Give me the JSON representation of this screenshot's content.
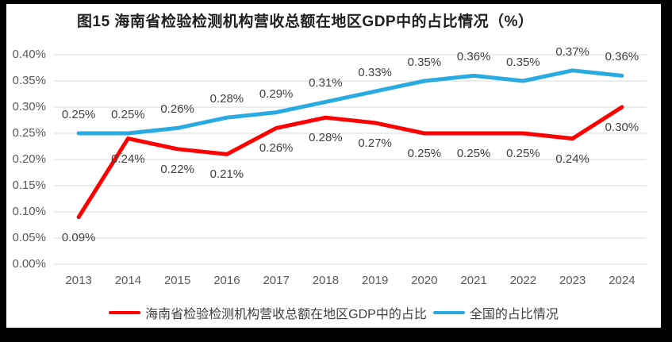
{
  "colors": {
    "hainan": "#fe0000",
    "national": "#29abe2",
    "gridline": "#d9d9d9",
    "axis_text": "#595959",
    "label_text": "#404040",
    "frame": "#000000",
    "background": "#ffffff"
  },
  "chart_data": {
    "type": "line",
    "title": "图15 海南省检验检测机构营收总额在地区GDP中的占比情况（%）",
    "xlabel": "",
    "ylabel": "",
    "categories": [
      "2013",
      "2014",
      "2015",
      "2016",
      "2017",
      "2018",
      "2019",
      "2020",
      "2021",
      "2022",
      "2023",
      "2024"
    ],
    "series": [
      {
        "name": "海南省检验检测机构营收总额在地区GDP中的占比",
        "color_key": "hainan",
        "values": [
          0.09,
          0.24,
          0.22,
          0.21,
          0.26,
          0.28,
          0.27,
          0.25,
          0.25,
          0.25,
          0.24,
          0.3
        ],
        "labels": [
          "0.09%",
          "0.24%",
          "0.22%",
          "0.21%",
          "0.26%",
          "0.28%",
          "0.27%",
          "0.25%",
          "0.25%",
          "0.25%",
          "0.24%",
          "0.30%"
        ],
        "label_position": "below"
      },
      {
        "name": "全国的占比情况",
        "color_key": "national",
        "values": [
          0.25,
          0.25,
          0.26,
          0.28,
          0.29,
          0.31,
          0.33,
          0.35,
          0.36,
          0.35,
          0.37,
          0.36
        ],
        "labels": [
          "0.25%",
          "0.25%",
          "0.26%",
          "0.28%",
          "0.29%",
          "0.31%",
          "0.33%",
          "0.35%",
          "0.36%",
          "0.35%",
          "0.37%",
          "0.36%"
        ],
        "label_position": "above"
      }
    ],
    "ylim": [
      0,
      0.4
    ],
    "yticks": [
      0,
      0.05,
      0.1,
      0.15,
      0.2,
      0.25,
      0.3,
      0.35,
      0.4
    ],
    "ytick_labels": [
      "0.00%",
      "0.05%",
      "0.10%",
      "0.15%",
      "0.20%",
      "0.25%",
      "0.30%",
      "0.35%",
      "0.40%"
    ],
    "grid": "horizontal",
    "legend_position": "bottom"
  }
}
